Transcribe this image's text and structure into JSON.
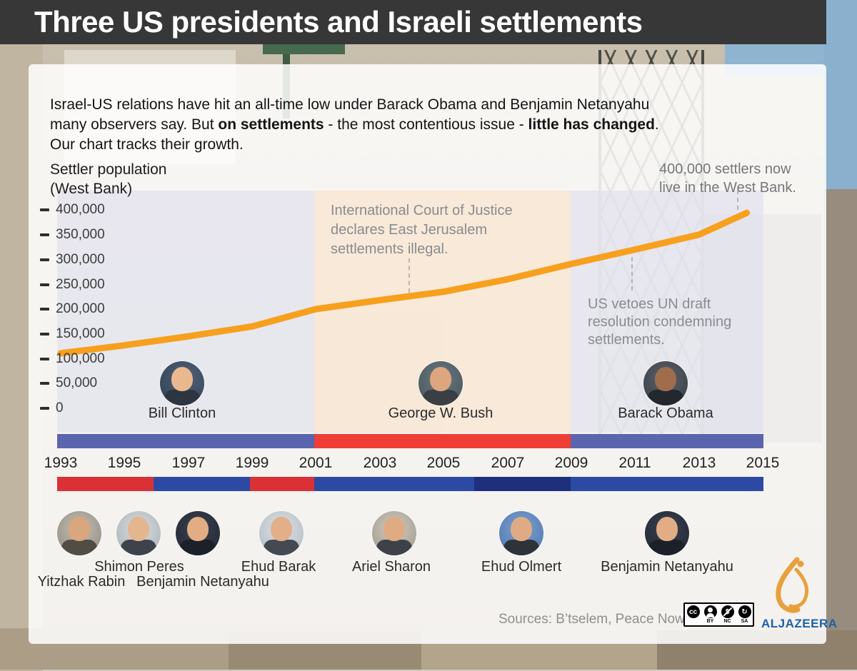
{
  "header": {
    "title": "Three US presidents and Israeli settlements"
  },
  "intro": {
    "l1": "Israel-US relations have hit an all-time low under Barack Obama and Benjamin Netanyahu",
    "l2a": "many observers say. But ",
    "l2b": "on settlements",
    "l2c": " - the most contentious issue - ",
    "l2d": "little has changed",
    "l2e": ".",
    "l3": "Our chart tracks their growth."
  },
  "axis": {
    "title1": "Settler population",
    "title2": "(West Bank)",
    "ticks": [
      "400,000",
      "350,000",
      "300,000",
      "250,000",
      "200,000",
      "150,000",
      "100,000",
      "50,000",
      "0"
    ]
  },
  "chart_data": {
    "type": "line",
    "title": "Settler population (West Bank), 1993-2015",
    "ylabel": "Settler population (West Bank)",
    "xlim": [
      1993,
      2015
    ],
    "ylim": [
      0,
      400000
    ],
    "y_ticks": [
      0,
      50000,
      100000,
      150000,
      200000,
      250000,
      300000,
      350000,
      400000
    ],
    "x_tick_years": [
      1993,
      1995,
      1997,
      1999,
      2001,
      2003,
      2005,
      2007,
      2009,
      2011,
      2013,
      2015
    ],
    "grid": false,
    "line_color": "#F7A01E",
    "x": [
      1993,
      1995,
      1997,
      1999,
      2001,
      2003,
      2005,
      2007,
      2009,
      2011,
      2013,
      2014.5
    ],
    "values": [
      111000,
      127000,
      145000,
      165000,
      200000,
      218000,
      235000,
      260000,
      291000,
      320000,
      350000,
      394000
    ],
    "events": [
      {
        "year": 2004,
        "label": "International Court of Justice declares East Jerusalem settlements illegal."
      },
      {
        "year": 2011,
        "label": "US vetoes UN draft resolution condemning settlements."
      },
      {
        "year": 2014.5,
        "label": "400,000 settlers now live in the West Bank."
      }
    ]
  },
  "annotations": {
    "icj": {
      "l1": "International Court of Justice",
      "l2": "declares East Jerusalem",
      "l3": "settlements illegal."
    },
    "veto": {
      "l1": "US vetoes UN draft",
      "l2": "resolution condemning",
      "l3": "settlements."
    },
    "now": {
      "l1": "400,000 settlers now",
      "l2": "live in the West Bank."
    }
  },
  "presidents": {
    "items": [
      {
        "name": "Bill Clinton"
      },
      {
        "name": "George W. Bush"
      },
      {
        "name": "Barack Obama"
      }
    ]
  },
  "us_timeline": {
    "segments": [
      {
        "president": "Bill Clinton",
        "start": 1993,
        "end": 2001,
        "color": "#5b64ae"
      },
      {
        "president": "George W. Bush",
        "start": 2001,
        "end": 2009,
        "color": "#ef3e36"
      },
      {
        "president": "Barack Obama",
        "start": 2009,
        "end": 2015,
        "color": "#5b64ae"
      }
    ]
  },
  "il_timeline": {
    "segments": [
      {
        "pm": "Yitzhak Rabin / Shimon Peres",
        "start": 1993,
        "end": 1996,
        "color": "#da3137"
      },
      {
        "pm": "Benjamin Netanyahu",
        "start": 1996,
        "end": 1999,
        "color": "#2c4aa3"
      },
      {
        "pm": "Ehud Barak",
        "start": 1999,
        "end": 2001,
        "color": "#da3137"
      },
      {
        "pm": "Ariel Sharon",
        "start": 2001,
        "end": 2006,
        "color": "#2c4aa3"
      },
      {
        "pm": "Ehud Olmert",
        "start": 2006,
        "end": 2009,
        "color": "#1e307c"
      },
      {
        "pm": "Benjamin Netanyahu",
        "start": 2009,
        "end": 2015,
        "color": "#2c4aa3"
      }
    ]
  },
  "era_bands": [
    {
      "era": "Clinton",
      "color": "rgba(222,222,236,0.6)"
    },
    {
      "era": "Bush",
      "color": "rgba(249,226,203,0.65)"
    },
    {
      "era": "Obama",
      "color": "rgba(222,222,236,0.6)"
    }
  ],
  "years": [
    "1993",
    "1995",
    "1997",
    "1999",
    "2001",
    "2003",
    "2005",
    "2007",
    "2009",
    "2011",
    "2013",
    "2015"
  ],
  "pms": {
    "items": [
      {
        "name": "Yitzhak Rabin"
      },
      {
        "name": "Shimon Peres"
      },
      {
        "name": "Benjamin Netanyahu"
      },
      {
        "name": "Ehud Barak"
      },
      {
        "name": "Ariel Sharon"
      },
      {
        "name": "Ehud Olmert"
      },
      {
        "name": "Benjamin Netanyahu"
      }
    ]
  },
  "footer": {
    "sources": "Sources: B’tselem, Peace Now",
    "cc_glyph": "cc",
    "cc_nc_glyph": "$",
    "cc_sa_glyph": "↻",
    "cc_labels": [
      "BY",
      "NC",
      "SA"
    ],
    "brand": "ALJAZEERA"
  }
}
